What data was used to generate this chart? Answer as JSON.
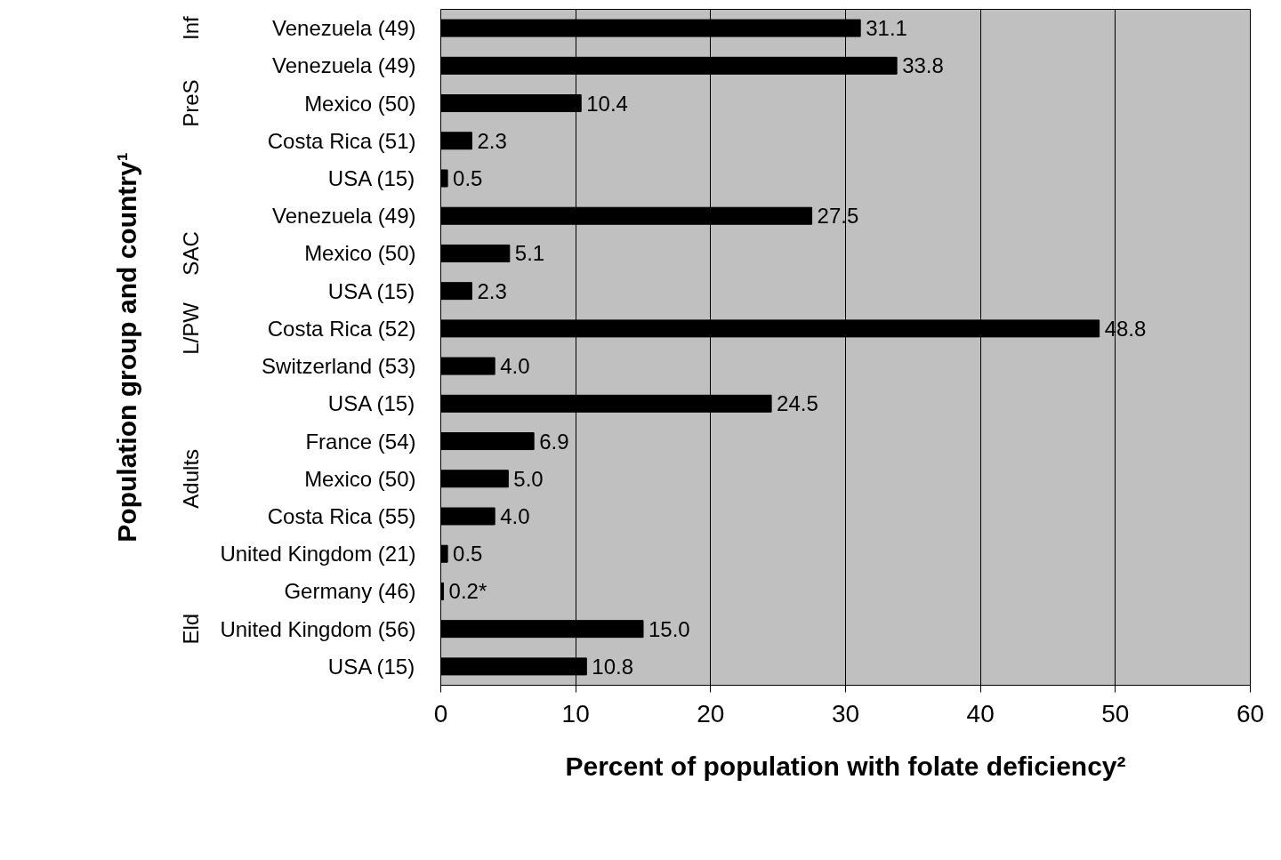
{
  "chart_data": {
    "type": "bar",
    "orientation": "horizontal",
    "ylabel": "Population group and country¹",
    "xlabel": "Percent of population with folate deficiency²",
    "categories": [
      "Venezuela (49)",
      "Venezuela (49)",
      "Mexico (50)",
      "Costa Rica (51)",
      "USA (15)",
      "Venezuela (49)",
      "Mexico (50)",
      "USA (15)",
      "Costa Rica (52)",
      "Switzerland (53)",
      "USA (15)",
      "France (54)",
      "Mexico (50)",
      "Costa Rica (55)",
      "United Kingdom (21)",
      "Germany (46)",
      "United Kingdom (56)",
      "USA (15)"
    ],
    "y2_categories": [
      "Inf",
      null,
      "PreS",
      null,
      null,
      null,
      "SAC",
      null,
      "L/PW",
      null,
      null,
      null,
      "Adults",
      null,
      null,
      null,
      "Eld",
      null
    ],
    "values": [
      31.1,
      33.8,
      10.4,
      2.3,
      0.5,
      27.5,
      5.1,
      2.3,
      48.8,
      4.0,
      24.5,
      6.9,
      5.0,
      4.0,
      0.5,
      0.2,
      15.0,
      10.8
    ],
    "value_labels": [
      "31.1",
      "33.8",
      "10.4",
      "2.3",
      "0.5",
      "27.5",
      "5.1",
      "2.3",
      "48.8",
      "4.0",
      "24.5",
      "6.9",
      "5.0",
      "4.0",
      "0.5",
      "0.2*",
      "15.0",
      "10.8"
    ],
    "color": "#000000",
    "xlim": [
      0,
      60
    ],
    "xticks": [
      0,
      10,
      20,
      30,
      40,
      50,
      60
    ],
    "grid": "x"
  }
}
